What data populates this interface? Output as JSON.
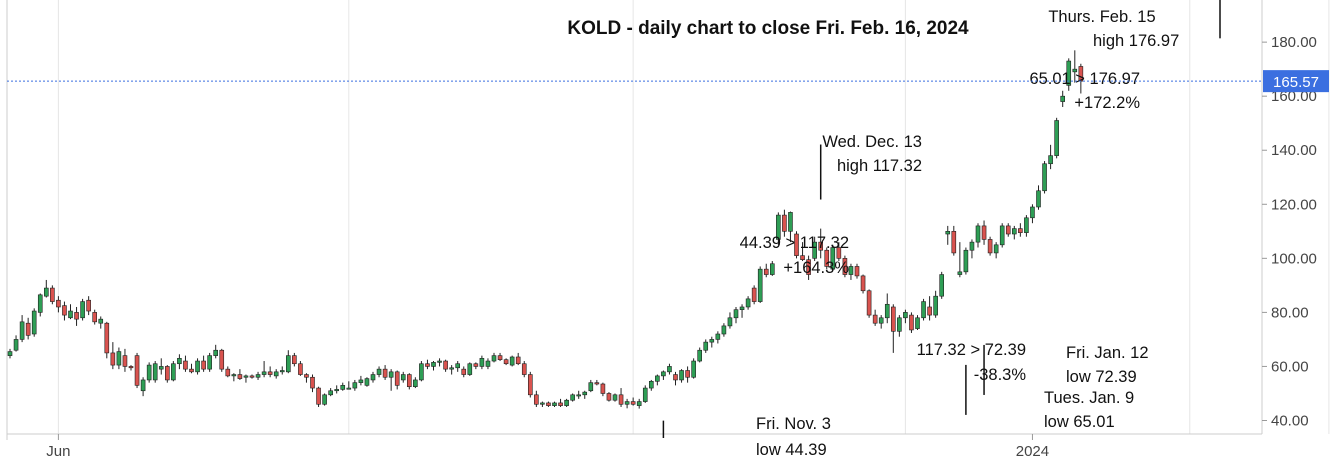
{
  "chart_data": {
    "type": "candlestick",
    "title": "KOLD - daily chart to close Fri. Feb. 16, 2024",
    "ylim": [
      35,
      193
    ],
    "y_ticks": [
      40,
      60,
      80,
      100,
      120,
      140,
      160,
      180
    ],
    "y_tick_labels": [
      "40.00",
      "60.00",
      "80.00",
      "100.00",
      "120.00",
      "140.00",
      "160.00",
      "180.00"
    ],
    "x_labels": [
      {
        "label": "Jun",
        "index": 8
      },
      {
        "label": "2024",
        "index": 169
      }
    ],
    "x_gridlines": [
      8,
      56,
      103,
      148,
      195,
      218,
      240
    ],
    "grid": "vertical",
    "last_price": {
      "value": 165.57,
      "label": "165.57",
      "color": "#3b6fe0"
    },
    "colors": {
      "up": "#2e9e55",
      "down": "#d9534f",
      "wick": "#222222",
      "grid": "#e6e6e6",
      "axis": "#cccccc"
    },
    "candles": [
      {
        "o": 64.0,
        "h": 66.5,
        "l": 63.0,
        "c": 65.5
      },
      {
        "o": 66.0,
        "h": 71.5,
        "l": 65.5,
        "c": 70.0
      },
      {
        "o": 70.0,
        "h": 79.0,
        "l": 69.0,
        "c": 76.5
      },
      {
        "o": 76.0,
        "h": 78.0,
        "l": 70.0,
        "c": 71.5
      },
      {
        "o": 72.0,
        "h": 81.5,
        "l": 71.0,
        "c": 80.5
      },
      {
        "o": 80.0,
        "h": 87.0,
        "l": 78.5,
        "c": 86.5
      },
      {
        "o": 86.0,
        "h": 92.0,
        "l": 85.5,
        "c": 89.0
      },
      {
        "o": 89.0,
        "h": 90.0,
        "l": 83.0,
        "c": 84.0
      },
      {
        "o": 84.5,
        "h": 86.0,
        "l": 80.0,
        "c": 82.0
      },
      {
        "o": 82.5,
        "h": 84.0,
        "l": 77.0,
        "c": 79.0
      },
      {
        "o": 78.0,
        "h": 83.0,
        "l": 77.5,
        "c": 80.5
      },
      {
        "o": 80.0,
        "h": 82.0,
        "l": 75.0,
        "c": 77.5
      },
      {
        "o": 78.0,
        "h": 85.0,
        "l": 77.0,
        "c": 84.0
      },
      {
        "o": 84.5,
        "h": 86.0,
        "l": 79.0,
        "c": 80.5
      },
      {
        "o": 80.0,
        "h": 81.0,
        "l": 75.5,
        "c": 76.5
      },
      {
        "o": 76.0,
        "h": 78.5,
        "l": 74.0,
        "c": 77.5
      },
      {
        "o": 76.0,
        "h": 76.5,
        "l": 63.0,
        "c": 65.0
      },
      {
        "o": 65.0,
        "h": 69.0,
        "l": 59.0,
        "c": 60.5
      },
      {
        "o": 60.5,
        "h": 67.0,
        "l": 59.0,
        "c": 65.5
      },
      {
        "o": 64.0,
        "h": 66.5,
        "l": 58.0,
        "c": 60.0
      },
      {
        "o": 60.0,
        "h": 60.5,
        "l": 58.5,
        "c": 59.5
      },
      {
        "o": 64.0,
        "h": 65.0,
        "l": 52.0,
        "c": 53.0
      },
      {
        "o": 51.0,
        "h": 56.0,
        "l": 49.0,
        "c": 55.0
      },
      {
        "o": 55.0,
        "h": 61.5,
        "l": 54.0,
        "c": 60.5
      },
      {
        "o": 55.0,
        "h": 62.0,
        "l": 54.0,
        "c": 61.0
      },
      {
        "o": 59.0,
        "h": 63.0,
        "l": 57.0,
        "c": 60.0
      },
      {
        "o": 60.0,
        "h": 60.5,
        "l": 54.0,
        "c": 55.0
      },
      {
        "o": 55.0,
        "h": 62.0,
        "l": 54.5,
        "c": 61.0
      },
      {
        "o": 61.0,
        "h": 64.5,
        "l": 59.0,
        "c": 63.0
      },
      {
        "o": 62.0,
        "h": 64.0,
        "l": 58.0,
        "c": 59.0
      },
      {
        "o": 59.0,
        "h": 61.0,
        "l": 57.5,
        "c": 58.0
      },
      {
        "o": 58.0,
        "h": 63.0,
        "l": 57.0,
        "c": 62.0
      },
      {
        "o": 62.0,
        "h": 64.0,
        "l": 58.0,
        "c": 59.0
      },
      {
        "o": 59.0,
        "h": 65.0,
        "l": 58.0,
        "c": 64.0
      },
      {
        "o": 64.0,
        "h": 68.0,
        "l": 63.0,
        "c": 66.0
      },
      {
        "o": 66.0,
        "h": 66.5,
        "l": 58.0,
        "c": 59.0
      },
      {
        "o": 59.0,
        "h": 60.0,
        "l": 56.0,
        "c": 56.5
      },
      {
        "o": 56.5,
        "h": 57.5,
        "l": 54.5,
        "c": 57.0
      },
      {
        "o": 57.0,
        "h": 59.0,
        "l": 55.0,
        "c": 55.5
      },
      {
        "o": 56.0,
        "h": 57.0,
        "l": 54.0,
        "c": 56.5
      },
      {
        "o": 56.5,
        "h": 57.0,
        "l": 55.5,
        "c": 56.0
      },
      {
        "o": 56.0,
        "h": 58.0,
        "l": 55.0,
        "c": 57.0
      },
      {
        "o": 57.0,
        "h": 62.0,
        "l": 56.0,
        "c": 58.0
      },
      {
        "o": 58.0,
        "h": 60.0,
        "l": 56.0,
        "c": 57.0
      },
      {
        "o": 56.5,
        "h": 59.0,
        "l": 55.5,
        "c": 58.0
      },
      {
        "o": 58.0,
        "h": 60.0,
        "l": 57.0,
        "c": 58.5
      },
      {
        "o": 58.0,
        "h": 66.0,
        "l": 57.5,
        "c": 64.0
      },
      {
        "o": 64.0,
        "h": 65.0,
        "l": 60.0,
        "c": 61.0
      },
      {
        "o": 61.0,
        "h": 62.0,
        "l": 56.5,
        "c": 57.0
      },
      {
        "o": 57.0,
        "h": 57.5,
        "l": 54.0,
        "c": 56.0
      },
      {
        "o": 56.0,
        "h": 57.0,
        "l": 50.5,
        "c": 52.0
      },
      {
        "o": 52.0,
        "h": 52.5,
        "l": 45.0,
        "c": 46.0
      },
      {
        "o": 46.0,
        "h": 50.0,
        "l": 45.5,
        "c": 49.5
      },
      {
        "o": 49.5,
        "h": 52.0,
        "l": 49.0,
        "c": 51.0
      },
      {
        "o": 51.0,
        "h": 53.0,
        "l": 50.0,
        "c": 51.5
      },
      {
        "o": 51.5,
        "h": 54.0,
        "l": 51.0,
        "c": 53.0
      },
      {
        "o": 52.0,
        "h": 54.5,
        "l": 51.5,
        "c": 52.0
      },
      {
        "o": 52.0,
        "h": 55.0,
        "l": 51.0,
        "c": 54.0
      },
      {
        "o": 54.0,
        "h": 56.5,
        "l": 53.0,
        "c": 55.0
      },
      {
        "o": 53.0,
        "h": 56.0,
        "l": 52.5,
        "c": 55.5
      },
      {
        "o": 55.0,
        "h": 58.0,
        "l": 54.0,
        "c": 57.0
      },
      {
        "o": 57.0,
        "h": 60.0,
        "l": 56.0,
        "c": 59.0
      },
      {
        "o": 59.0,
        "h": 60.5,
        "l": 55.0,
        "c": 56.0
      },
      {
        "o": 56.0,
        "h": 59.0,
        "l": 51.0,
        "c": 58.0
      },
      {
        "o": 58.0,
        "h": 58.5,
        "l": 51.5,
        "c": 53.0
      },
      {
        "o": 55.0,
        "h": 58.0,
        "l": 54.0,
        "c": 57.0
      },
      {
        "o": 57.0,
        "h": 57.5,
        "l": 51.5,
        "c": 52.5
      },
      {
        "o": 52.5,
        "h": 56.0,
        "l": 52.0,
        "c": 55.0
      },
      {
        "o": 55.0,
        "h": 62.0,
        "l": 54.5,
        "c": 61.0
      },
      {
        "o": 61.0,
        "h": 62.5,
        "l": 59.0,
        "c": 60.0
      },
      {
        "o": 60.0,
        "h": 62.0,
        "l": 58.5,
        "c": 61.5
      },
      {
        "o": 61.5,
        "h": 63.0,
        "l": 60.0,
        "c": 62.0
      },
      {
        "o": 62.0,
        "h": 62.5,
        "l": 58.0,
        "c": 59.0
      },
      {
        "o": 59.0,
        "h": 60.5,
        "l": 57.0,
        "c": 59.5
      },
      {
        "o": 59.5,
        "h": 62.0,
        "l": 58.0,
        "c": 61.0
      },
      {
        "o": 59.0,
        "h": 60.0,
        "l": 56.0,
        "c": 57.0
      },
      {
        "o": 57.0,
        "h": 61.5,
        "l": 56.5,
        "c": 61.0
      },
      {
        "o": 61.0,
        "h": 61.5,
        "l": 59.0,
        "c": 60.0
      },
      {
        "o": 60.0,
        "h": 64.0,
        "l": 59.0,
        "c": 63.0
      },
      {
        "o": 60.0,
        "h": 63.0,
        "l": 59.0,
        "c": 62.0
      },
      {
        "o": 62.0,
        "h": 65.0,
        "l": 61.5,
        "c": 64.0
      },
      {
        "o": 64.0,
        "h": 65.0,
        "l": 62.0,
        "c": 62.5
      },
      {
        "o": 62.5,
        "h": 63.0,
        "l": 60.5,
        "c": 61.0
      },
      {
        "o": 60.5,
        "h": 64.0,
        "l": 60.0,
        "c": 63.5
      },
      {
        "o": 63.5,
        "h": 65.0,
        "l": 60.5,
        "c": 61.0
      },
      {
        "o": 61.0,
        "h": 62.0,
        "l": 56.0,
        "c": 57.0
      },
      {
        "o": 57.0,
        "h": 58.0,
        "l": 48.5,
        "c": 49.5
      },
      {
        "o": 49.5,
        "h": 51.0,
        "l": 45.0,
        "c": 46.0
      },
      {
        "o": 46.0,
        "h": 47.0,
        "l": 45.0,
        "c": 46.5
      },
      {
        "o": 46.5,
        "h": 47.0,
        "l": 45.0,
        "c": 45.5
      },
      {
        "o": 45.5,
        "h": 47.0,
        "l": 45.0,
        "c": 46.5
      },
      {
        "o": 46.5,
        "h": 48.0,
        "l": 45.0,
        "c": 45.5
      },
      {
        "o": 45.5,
        "h": 48.0,
        "l": 45.0,
        "c": 47.5
      },
      {
        "o": 47.5,
        "h": 50.0,
        "l": 47.0,
        "c": 49.5
      },
      {
        "o": 49.5,
        "h": 51.0,
        "l": 48.0,
        "c": 49.5
      },
      {
        "o": 49.5,
        "h": 51.0,
        "l": 48.0,
        "c": 50.5
      },
      {
        "o": 51.0,
        "h": 55.0,
        "l": 50.5,
        "c": 54.0
      },
      {
        "o": 54.0,
        "h": 55.0,
        "l": 53.0,
        "c": 53.5
      },
      {
        "o": 53.5,
        "h": 54.0,
        "l": 49.0,
        "c": 50.0
      },
      {
        "o": 50.0,
        "h": 50.5,
        "l": 47.0,
        "c": 47.5
      },
      {
        "o": 47.5,
        "h": 50.0,
        "l": 47.0,
        "c": 49.5
      },
      {
        "o": 49.5,
        "h": 52.0,
        "l": 45.0,
        "c": 46.0
      },
      {
        "o": 46.0,
        "h": 48.0,
        "l": 44.5,
        "c": 47.0
      },
      {
        "o": 47.0,
        "h": 48.5,
        "l": 45.5,
        "c": 46.0
      },
      {
        "o": 45.5,
        "h": 48.0,
        "l": 44.4,
        "c": 47.0
      },
      {
        "o": 47.0,
        "h": 53.0,
        "l": 46.5,
        "c": 52.0
      },
      {
        "o": 52.0,
        "h": 55.0,
        "l": 51.0,
        "c": 54.5
      },
      {
        "o": 54.5,
        "h": 57.0,
        "l": 53.0,
        "c": 56.5
      },
      {
        "o": 56.5,
        "h": 58.5,
        "l": 55.0,
        "c": 58.0
      },
      {
        "o": 58.0,
        "h": 61.0,
        "l": 57.0,
        "c": 60.0
      },
      {
        "o": 57.0,
        "h": 58.0,
        "l": 53.0,
        "c": 55.0
      },
      {
        "o": 55.0,
        "h": 59.0,
        "l": 54.0,
        "c": 58.5
      },
      {
        "o": 58.5,
        "h": 60.0,
        "l": 54.0,
        "c": 56.0
      },
      {
        "o": 56.0,
        "h": 63.0,
        "l": 55.5,
        "c": 62.0
      },
      {
        "o": 62.0,
        "h": 67.0,
        "l": 61.5,
        "c": 66.0
      },
      {
        "o": 66.0,
        "h": 70.0,
        "l": 65.0,
        "c": 69.0
      },
      {
        "o": 69.0,
        "h": 71.0,
        "l": 67.0,
        "c": 70.0
      },
      {
        "o": 70.0,
        "h": 73.0,
        "l": 68.5,
        "c": 72.0
      },
      {
        "o": 72.0,
        "h": 76.0,
        "l": 71.0,
        "c": 75.0
      },
      {
        "o": 75.0,
        "h": 80.0,
        "l": 74.0,
        "c": 78.0
      },
      {
        "o": 78.0,
        "h": 82.0,
        "l": 76.0,
        "c": 81.0
      },
      {
        "o": 81.0,
        "h": 83.0,
        "l": 78.0,
        "c": 82.0
      },
      {
        "o": 82.0,
        "h": 86.0,
        "l": 81.0,
        "c": 85.0
      },
      {
        "o": 89.0,
        "h": 90.0,
        "l": 83.0,
        "c": 84.0
      },
      {
        "o": 84.0,
        "h": 97.0,
        "l": 83.5,
        "c": 96.0
      },
      {
        "o": 96.0,
        "h": 98.0,
        "l": 93.0,
        "c": 94.0
      },
      {
        "o": 94.0,
        "h": 99.0,
        "l": 93.5,
        "c": 98.0
      },
      {
        "o": 107.0,
        "h": 117.0,
        "l": 105.0,
        "c": 116.0
      },
      {
        "o": 116.0,
        "h": 118.0,
        "l": 108.0,
        "c": 110.0
      },
      {
        "o": 110.0,
        "h": 117.32,
        "l": 106.0,
        "c": 117.0
      },
      {
        "o": 109.0,
        "h": 110.0,
        "l": 100.0,
        "c": 101.0
      },
      {
        "o": 101.0,
        "h": 106.0,
        "l": 99.0,
        "c": 99.5
      },
      {
        "o": 99.5,
        "h": 101.0,
        "l": 92.0,
        "c": 94.0
      },
      {
        "o": 100.0,
        "h": 108.0,
        "l": 99.0,
        "c": 106.0
      },
      {
        "o": 106.0,
        "h": 111.0,
        "l": 100.0,
        "c": 103.0
      },
      {
        "o": 103.0,
        "h": 104.0,
        "l": 96.0,
        "c": 97.0
      },
      {
        "o": 96.0,
        "h": 105.0,
        "l": 95.5,
        "c": 104.0
      },
      {
        "o": 104.0,
        "h": 106.0,
        "l": 99.0,
        "c": 100.0
      },
      {
        "o": 100.0,
        "h": 101.0,
        "l": 93.0,
        "c": 94.0
      },
      {
        "o": 94.0,
        "h": 98.0,
        "l": 92.0,
        "c": 97.0
      },
      {
        "o": 97.0,
        "h": 98.0,
        "l": 92.5,
        "c": 93.5
      },
      {
        "o": 93.5,
        "h": 94.0,
        "l": 87.0,
        "c": 88.0
      },
      {
        "o": 88.0,
        "h": 88.5,
        "l": 78.0,
        "c": 79.0
      },
      {
        "o": 79.0,
        "h": 81.0,
        "l": 75.0,
        "c": 76.0
      },
      {
        "o": 76.0,
        "h": 79.0,
        "l": 74.0,
        "c": 78.0
      },
      {
        "o": 78.0,
        "h": 87.0,
        "l": 76.0,
        "c": 83.0
      },
      {
        "o": 82.0,
        "h": 83.0,
        "l": 65.01,
        "c": 73.0
      },
      {
        "o": 73.0,
        "h": 79.0,
        "l": 71.0,
        "c": 78.0
      },
      {
        "o": 78.0,
        "h": 81.0,
        "l": 76.0,
        "c": 80.0
      },
      {
        "o": 79.0,
        "h": 80.0,
        "l": 72.39,
        "c": 73.5
      },
      {
        "o": 74.0,
        "h": 79.0,
        "l": 73.5,
        "c": 78.0
      },
      {
        "o": 78.0,
        "h": 85.0,
        "l": 77.0,
        "c": 84.0
      },
      {
        "o": 82.0,
        "h": 86.0,
        "l": 77.0,
        "c": 79.0
      },
      {
        "o": 79.0,
        "h": 88.0,
        "l": 78.0,
        "c": 86.0
      },
      {
        "o": 86.0,
        "h": 95.0,
        "l": 85.0,
        "c": 94.0
      },
      {
        "o": 109.0,
        "h": 112.0,
        "l": 105.0,
        "c": 110.0
      },
      {
        "o": 110.0,
        "h": 112.0,
        "l": 101.0,
        "c": 102.0
      },
      {
        "o": 94.0,
        "h": 106.0,
        "l": 93.0,
        "c": 95.0
      },
      {
        "o": 95.0,
        "h": 104.0,
        "l": 94.0,
        "c": 103.0
      },
      {
        "o": 103.0,
        "h": 107.0,
        "l": 100.0,
        "c": 106.0
      },
      {
        "o": 106.0,
        "h": 113.0,
        "l": 104.0,
        "c": 112.0
      },
      {
        "o": 112.0,
        "h": 114.0,
        "l": 105.0,
        "c": 107.0
      },
      {
        "o": 107.0,
        "h": 108.0,
        "l": 101.0,
        "c": 102.0
      },
      {
        "o": 102.0,
        "h": 106.0,
        "l": 100.0,
        "c": 105.0
      },
      {
        "o": 105.0,
        "h": 113.0,
        "l": 104.0,
        "c": 112.0
      },
      {
        "o": 112.0,
        "h": 113.0,
        "l": 108.0,
        "c": 109.0
      },
      {
        "o": 109.0,
        "h": 112.0,
        "l": 107.0,
        "c": 111.0
      },
      {
        "o": 111.0,
        "h": 113.0,
        "l": 108.0,
        "c": 109.5
      },
      {
        "o": 109.5,
        "h": 116.0,
        "l": 108.0,
        "c": 115.0
      },
      {
        "o": 115.0,
        "h": 120.0,
        "l": 113.0,
        "c": 119.0
      },
      {
        "o": 119.0,
        "h": 127.0,
        "l": 118.0,
        "c": 125.0
      },
      {
        "o": 125.0,
        "h": 136.0,
        "l": 124.0,
        "c": 135.0
      },
      {
        "o": 135.0,
        "h": 142.0,
        "l": 133.0,
        "c": 138.0
      },
      {
        "o": 138.0,
        "h": 152.0,
        "l": 137.0,
        "c": 151.0
      },
      {
        "o": 158.0,
        "h": 162.0,
        "l": 156.0,
        "c": 160.0
      },
      {
        "o": 164.0,
        "h": 174.0,
        "l": 162.0,
        "c": 173.0
      },
      {
        "o": 169.0,
        "h": 176.97,
        "l": 165.0,
        "c": 170.0
      },
      {
        "o": 171.0,
        "h": 172.0,
        "l": 161.0,
        "c": 165.57
      }
    ],
    "annotations": [
      {
        "lines": [
          "Thurs. Feb. 15",
          "high 176.97"
        ],
        "index": 200,
        "value": 176.97,
        "marker": "above"
      },
      {
        "lines": [
          "65.01 > 176.97",
          "+172.2%"
        ],
        "note": "percent-change"
      },
      {
        "lines": [
          "Wed. Dec. 13",
          "high 117.32"
        ],
        "index": 134,
        "value": 117.32,
        "marker": "above"
      },
      {
        "lines": [
          "44.39 > 117.32",
          "+164.3%"
        ],
        "note": "percent-change"
      },
      {
        "lines": [
          "117.32 > 72.39",
          "-38.3%"
        ],
        "note": "percent-change"
      },
      {
        "lines": [
          "Fri. Jan. 12",
          "low 72.39"
        ],
        "index": 161,
        "value": 72.39,
        "marker": "below"
      },
      {
        "lines": [
          "Tues. Jan. 9",
          "low 65.01"
        ],
        "index": 158,
        "value": 65.01,
        "marker": "below"
      },
      {
        "lines": [
          "Fri. Nov. 3",
          "low 44.39"
        ],
        "index": 108,
        "value": 44.39,
        "marker": "below"
      }
    ]
  }
}
